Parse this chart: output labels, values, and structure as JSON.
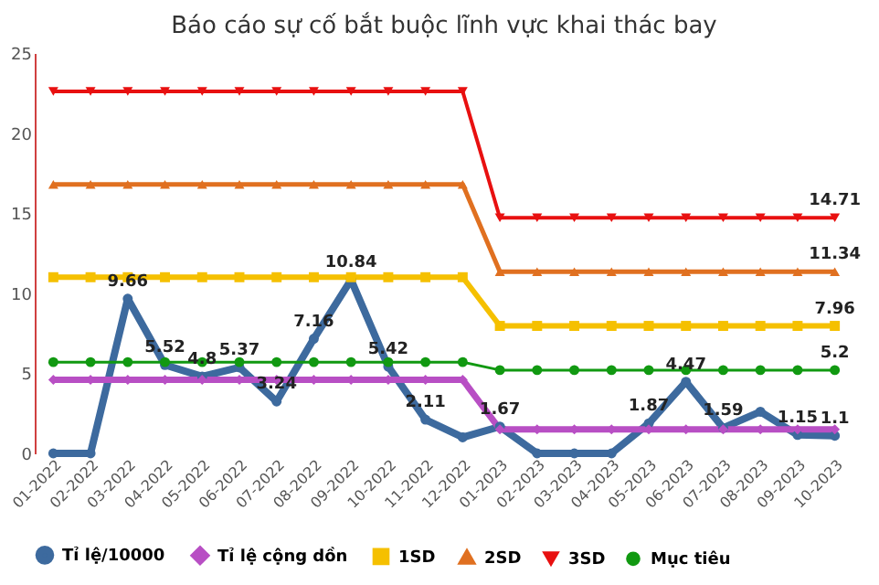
{
  "chart_data": {
    "type": "line",
    "title": "Báo cáo sự cố bắt buộc lĩnh vực khai thác bay",
    "categories": [
      "01-2022",
      "02-2022",
      "03-2022",
      "04-2022",
      "05-2022",
      "06-2022",
      "07-2022",
      "08-2022",
      "09-2022",
      "10-2022",
      "11-2022",
      "12-2022",
      "01-2023",
      "02-2023",
      "03-2023",
      "04-2023",
      "05-2023",
      "06-2023",
      "07-2023",
      "08-2023",
      "09-2023",
      "10-2023"
    ],
    "series": [
      {
        "name": "Tỉ lệ/10000",
        "color": "#3d6a9e",
        "marker": "circle",
        "values": [
          0,
          0,
          9.66,
          5.52,
          4.8,
          5.37,
          3.24,
          7.16,
          10.84,
          5.42,
          2.11,
          1.0,
          1.67,
          0,
          0,
          0,
          1.87,
          4.47,
          1.59,
          2.6,
          1.15,
          1.1
        ],
        "value_labels": [
          null,
          null,
          "9.66",
          "5.52",
          "4.8",
          "5.37",
          "3.24",
          "7.16",
          "10.84",
          "5.42",
          "2.11",
          null,
          "1.67",
          null,
          null,
          null,
          "1.87",
          "4.47",
          "1.59",
          null,
          "1.15",
          "1.1"
        ]
      },
      {
        "name": "Tỉ lệ cộng dồn",
        "color": "#b84fc4",
        "marker": "diamond",
        "values": [
          4.6,
          4.6,
          4.6,
          4.6,
          4.6,
          4.6,
          4.6,
          4.6,
          4.6,
          4.6,
          4.6,
          4.6,
          1.5,
          1.5,
          1.5,
          1.5,
          1.5,
          1.5,
          1.5,
          1.5,
          1.5,
          1.5
        ]
      },
      {
        "name": "1SD",
        "color": "#f5c000",
        "marker": "square",
        "values": [
          11,
          11,
          11,
          11,
          11,
          11,
          11,
          11,
          11,
          11,
          11,
          11,
          7.96,
          7.96,
          7.96,
          7.96,
          7.96,
          7.96,
          7.96,
          7.96,
          7.96,
          7.96
        ],
        "value_labels": [
          null,
          null,
          null,
          null,
          null,
          null,
          null,
          null,
          null,
          null,
          null,
          null,
          null,
          null,
          null,
          null,
          null,
          null,
          null,
          null,
          null,
          "7.96"
        ]
      },
      {
        "name": "2SD",
        "color": "#e07020",
        "marker": "triangle",
        "values": [
          16.8,
          16.8,
          16.8,
          16.8,
          16.8,
          16.8,
          16.8,
          16.8,
          16.8,
          16.8,
          16.8,
          16.8,
          11.34,
          11.34,
          11.34,
          11.34,
          11.34,
          11.34,
          11.34,
          11.34,
          11.34,
          11.34
        ],
        "value_labels": [
          null,
          null,
          null,
          null,
          null,
          null,
          null,
          null,
          null,
          null,
          null,
          null,
          null,
          null,
          null,
          null,
          null,
          null,
          null,
          null,
          null,
          "11.34"
        ]
      },
      {
        "name": "3SD",
        "color": "#e81010",
        "marker": "triangle-down",
        "values": [
          22.6,
          22.6,
          22.6,
          22.6,
          22.6,
          22.6,
          22.6,
          22.6,
          22.6,
          22.6,
          22.6,
          22.6,
          14.71,
          14.71,
          14.71,
          14.71,
          14.71,
          14.71,
          14.71,
          14.71,
          14.71,
          14.71
        ],
        "value_labels": [
          null,
          null,
          null,
          null,
          null,
          null,
          null,
          null,
          null,
          null,
          null,
          null,
          null,
          null,
          null,
          null,
          null,
          null,
          null,
          null,
          null,
          "14.71"
        ]
      },
      {
        "name": "Mục tiêu",
        "color": "#119911",
        "marker": "circle",
        "values": [
          5.7,
          5.7,
          5.7,
          5.7,
          5.7,
          5.7,
          5.7,
          5.7,
          5.7,
          5.7,
          5.7,
          5.7,
          5.2,
          5.2,
          5.2,
          5.2,
          5.2,
          5.2,
          5.2,
          5.2,
          5.2,
          5.2
        ],
        "value_labels": [
          null,
          null,
          null,
          null,
          null,
          null,
          null,
          null,
          null,
          null,
          null,
          null,
          null,
          null,
          null,
          null,
          null,
          null,
          null,
          null,
          null,
          "5.2"
        ]
      }
    ],
    "ylim": [
      0,
      25
    ],
    "yticks": [
      0,
      5,
      10,
      15,
      20,
      25
    ],
    "grid": false,
    "legend": "bottom"
  }
}
